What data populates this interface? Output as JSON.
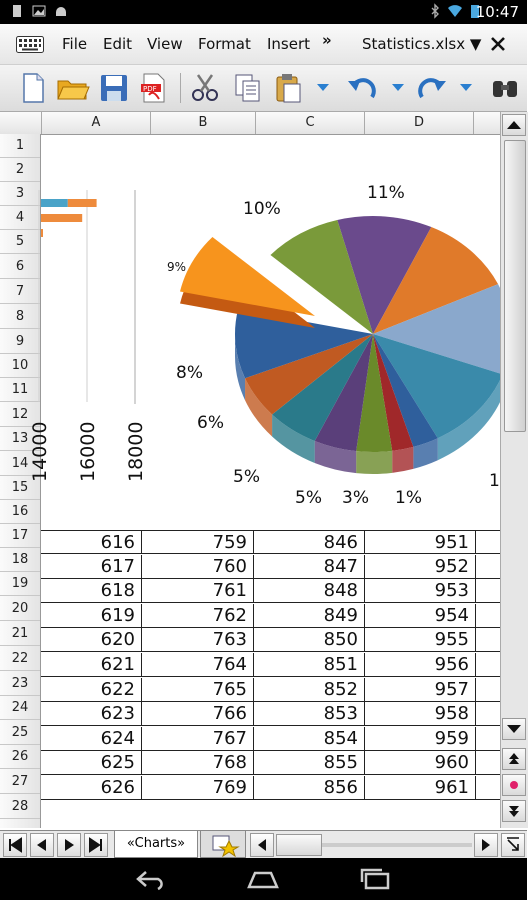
{
  "status": {
    "time": "10:47"
  },
  "menu": {
    "file": "File",
    "edit": "Edit",
    "view": "View",
    "format": "Format",
    "insert": "Insert",
    "more": "»",
    "filename": "Statistics.xlsx ▼"
  },
  "columns": [
    "A",
    "B",
    "C",
    "D"
  ],
  "rows": [
    "1",
    "2",
    "3",
    "4",
    "5",
    "6",
    "7",
    "8",
    "9",
    "10",
    "11",
    "12",
    "13",
    "14",
    "15",
    "16",
    "17",
    "18",
    "19",
    "20",
    "21",
    "22",
    "23",
    "24",
    "25",
    "26",
    "27",
    "28"
  ],
  "table": [
    [
      "616",
      "759",
      "846",
      "951"
    ],
    [
      "617",
      "760",
      "847",
      "952"
    ],
    [
      "618",
      "761",
      "848",
      "953"
    ],
    [
      "619",
      "762",
      "849",
      "954"
    ],
    [
      "620",
      "763",
      "850",
      "955"
    ],
    [
      "621",
      "764",
      "851",
      "956"
    ],
    [
      "622",
      "765",
      "852",
      "957"
    ],
    [
      "623",
      "766",
      "853",
      "958"
    ],
    [
      "624",
      "767",
      "854",
      "959"
    ],
    [
      "625",
      "768",
      "855",
      "960"
    ],
    [
      "626",
      "769",
      "856",
      "961"
    ]
  ],
  "chart_data": [
    {
      "type": "bar",
      "orientation": "horizontal",
      "x_ticks": [
        "14000",
        "16000",
        "18000"
      ],
      "series": [
        {
          "values": [
            15200
          ],
          "color": "#4aa3c8"
        },
        {
          "values": [
            16400,
            15800,
            14100
          ],
          "color": "#ee8b3c"
        }
      ]
    },
    {
      "type": "pie",
      "labels": [
        "11%",
        "10%",
        "9%",
        "8%",
        "6%",
        "5%",
        "5%",
        "3%",
        "1%",
        "1"
      ],
      "colors": [
        "#6a4a8c",
        "#7a9a3a",
        "#f7941d",
        "#2f5f9c",
        "#c05a22",
        "#2a7a8a",
        "#5a3f7a",
        "#6a8a2a",
        "#a0282a",
        "#8aa8cc",
        "#e07a2a",
        "#3a8aaa"
      ]
    }
  ],
  "sheetbar": {
    "tab": "«Charts»"
  }
}
